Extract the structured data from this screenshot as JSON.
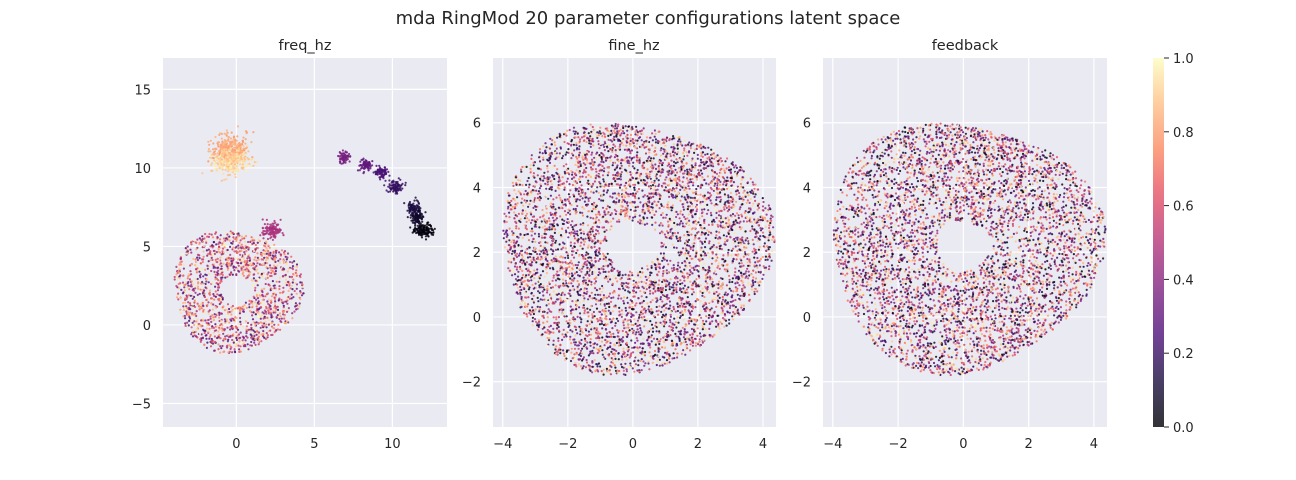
{
  "figure": {
    "title": "mda RingMod 20 parameter configurations latent space"
  },
  "chart_data": [
    {
      "type": "scatter",
      "title": "freq_hz",
      "xlim": [
        -4.7,
        13.5
      ],
      "ylim": [
        -6.5,
        17.0
      ],
      "x_ticks": [
        0,
        5,
        10
      ],
      "y_ticks": [
        -5,
        0,
        5,
        10,
        15
      ],
      "grid": true,
      "clusters": [
        {
          "shape": "ring",
          "cx": 0.0,
          "cy": 2.2,
          "r_inner": 1.0,
          "r_outer": 4.0,
          "count": 1500,
          "value_range": [
            0.2,
            1.0
          ]
        },
        {
          "shape": "blob",
          "cx": -0.4,
          "cy": 11.2,
          "rx": 1.2,
          "ry": 0.9,
          "count": 280,
          "value_range": [
            0.78,
            0.86
          ]
        },
        {
          "shape": "blob",
          "cx": -0.4,
          "cy": 10.4,
          "rx": 1.2,
          "ry": 0.8,
          "count": 260,
          "value_range": [
            0.86,
            0.98
          ]
        },
        {
          "shape": "blob",
          "cx": 2.3,
          "cy": 6.0,
          "rx": 0.6,
          "ry": 0.5,
          "count": 120,
          "value_range": [
            0.44,
            0.5
          ]
        },
        {
          "shape": "blob",
          "cx": 6.9,
          "cy": 10.7,
          "rx": 0.4,
          "ry": 0.35,
          "count": 70,
          "value_range": [
            0.33,
            0.37
          ]
        },
        {
          "shape": "blob",
          "cx": 8.3,
          "cy": 10.2,
          "rx": 0.45,
          "ry": 0.4,
          "count": 80,
          "value_range": [
            0.28,
            0.32
          ]
        },
        {
          "shape": "blob",
          "cx": 9.3,
          "cy": 9.7,
          "rx": 0.45,
          "ry": 0.4,
          "count": 80,
          "value_range": [
            0.22,
            0.26
          ]
        },
        {
          "shape": "blob",
          "cx": 10.2,
          "cy": 8.8,
          "rx": 0.45,
          "ry": 0.4,
          "count": 90,
          "value_range": [
            0.17,
            0.21
          ]
        },
        {
          "shape": "blob",
          "cx": 11.3,
          "cy": 7.4,
          "rx": 0.5,
          "ry": 0.45,
          "count": 90,
          "value_range": [
            0.11,
            0.15
          ]
        },
        {
          "shape": "blob",
          "cx": 11.6,
          "cy": 6.8,
          "rx": 0.5,
          "ry": 0.4,
          "count": 90,
          "value_range": [
            0.06,
            0.1
          ]
        },
        {
          "shape": "blob",
          "cx": 12.0,
          "cy": 6.0,
          "rx": 0.6,
          "ry": 0.45,
          "count": 140,
          "value_range": [
            0.0,
            0.05
          ]
        }
      ]
    },
    {
      "type": "scatter",
      "title": "fine_hz",
      "xlim": [
        -4.3,
        4.4
      ],
      "ylim": [
        -3.4,
        8.0
      ],
      "x_ticks": [
        -4,
        -2,
        0,
        2,
        4
      ],
      "y_ticks": [
        -2,
        0,
        2,
        4,
        6
      ],
      "grid": true,
      "clusters": [
        {
          "shape": "ring",
          "cx": 0.0,
          "cy": 2.2,
          "r_inner": 0.8,
          "r_outer": 4.0,
          "count": 5200,
          "value_range": [
            0.0,
            1.0
          ]
        }
      ]
    },
    {
      "type": "scatter",
      "title": "feedback",
      "xlim": [
        -4.3,
        4.4
      ],
      "ylim": [
        -3.4,
        8.0
      ],
      "x_ticks": [
        -4,
        -2,
        0,
        2,
        4
      ],
      "y_ticks": [
        -2,
        0,
        2,
        4,
        6
      ],
      "grid": true,
      "clusters": [
        {
          "shape": "ring",
          "cx": 0.0,
          "cy": 2.2,
          "r_inner": 0.8,
          "r_outer": 4.0,
          "count": 5200,
          "value_range": [
            0.0,
            1.0
          ]
        }
      ]
    }
  ],
  "colorbar": {
    "colormap": "magma",
    "range": [
      0.0,
      1.0
    ],
    "ticks": [
      "0.0",
      "0.2",
      "0.4",
      "0.6",
      "0.8",
      "1.0"
    ],
    "tick_values": [
      0.0,
      0.2,
      0.4,
      0.6,
      0.8,
      1.0
    ]
  },
  "style": {
    "axes_bg": "#eaeaf2",
    "grid_color": "#ffffff",
    "text_color": "#262626"
  }
}
